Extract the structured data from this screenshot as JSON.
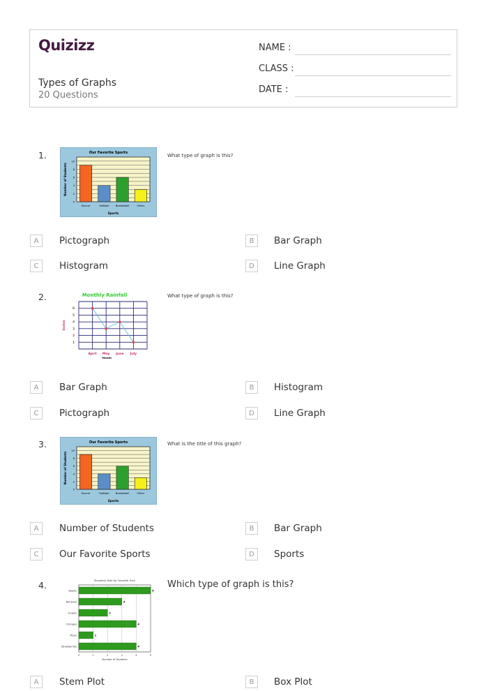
{
  "header": {
    "logo": "Quizizz",
    "title": "Types of Graphs",
    "subtitle": "20 Questions",
    "fields": [
      "NAME :",
      "CLASS :",
      "DATE  :"
    ]
  },
  "questions": [
    {
      "number": "1.",
      "text": "What type of graph is this?",
      "options": [
        {
          "letter": "A",
          "text": "Pictograph"
        },
        {
          "letter": "B",
          "text": "Bar Graph"
        },
        {
          "letter": "C",
          "text": "Histogram"
        },
        {
          "letter": "D",
          "text": "Line Graph"
        }
      ]
    },
    {
      "number": "2.",
      "text": "What type of graph is this?",
      "options": [
        {
          "letter": "A",
          "text": "Bar Graph"
        },
        {
          "letter": "B",
          "text": "Histogram"
        },
        {
          "letter": "C",
          "text": "Pictograph"
        },
        {
          "letter": "D",
          "text": "Line Graph"
        }
      ]
    },
    {
      "number": "3.",
      "text": "What is the title of this graph?",
      "options": [
        {
          "letter": "A",
          "text": "Number of Students"
        },
        {
          "letter": "B",
          "text": "Bar Graph"
        },
        {
          "letter": "C",
          "text": "Our Favorite Sports"
        },
        {
          "letter": "D",
          "text": "Sports"
        }
      ]
    },
    {
      "number": "4.",
      "text": "Which type of graph is this?",
      "options": [
        {
          "letter": "A",
          "text": "Stem Plot"
        },
        {
          "letter": "B",
          "text": "Box Plot"
        }
      ]
    }
  ],
  "chart_data": [
    {
      "type": "bar",
      "title": "Our Favorite Sports",
      "xlabel": "Sports",
      "ylabel": "Number of Students",
      "categories": [
        "Soccer",
        "Softball",
        "Basketball",
        "Other"
      ],
      "values": [
        9,
        4,
        6,
        3
      ],
      "bar_colors": [
        "#f26522",
        "#5b8ec9",
        "#2ca02c",
        "#f5f01a"
      ],
      "yticks": [
        "0",
        "2",
        "4",
        "6",
        "8",
        "10"
      ],
      "ylim": [
        0,
        11
      ],
      "panel_color": "#9cc8de",
      "plot_color": "#f7f4c8"
    },
    {
      "type": "line",
      "title": "Monthly Rainfall",
      "xlabel": "Month",
      "ylabel": "Inches",
      "categories": [
        "April",
        "May",
        "June",
        "July"
      ],
      "values": [
        6,
        3,
        4,
        1
      ],
      "yticks": [
        "1",
        "2",
        "3",
        "4",
        "5",
        "6"
      ],
      "ylim": [
        0,
        6
      ],
      "title_color": "#33cc33",
      "axis_label_color": "#cc3366",
      "grid_color": "#2a2a7a"
    },
    {
      "type": "bar",
      "title": "Our Favorite Sports",
      "xlabel": "Sports",
      "ylabel": "Number of Students",
      "categories": [
        "Soccer",
        "Softball",
        "Basketball",
        "Other"
      ],
      "values": [
        9,
        4,
        6,
        3
      ],
      "bar_colors": [
        "#f26522",
        "#5b8ec9",
        "#2ca02c",
        "#f5f01a"
      ],
      "yticks": [
        "0",
        "2",
        "4",
        "6",
        "8",
        "10"
      ],
      "ylim": [
        0,
        11
      ],
      "panel_color": "#9cc8de",
      "plot_color": "#f7f4c8"
    },
    {
      "type": "bar",
      "orientation": "horizontal",
      "title": "Students Vote for Favorite Fruit",
      "xlabel": "Number of Students",
      "categories": [
        "Apples",
        "Bananas",
        "Grapes",
        "Oranges",
        "Pears",
        "Strawberries"
      ],
      "values": [
        5,
        3,
        2,
        4,
        1,
        4
      ],
      "xticks": [
        "0",
        "1",
        "2",
        "3",
        "4",
        "5"
      ],
      "xlim": [
        0,
        5
      ],
      "bar_color": "#2e9a1e"
    }
  ]
}
